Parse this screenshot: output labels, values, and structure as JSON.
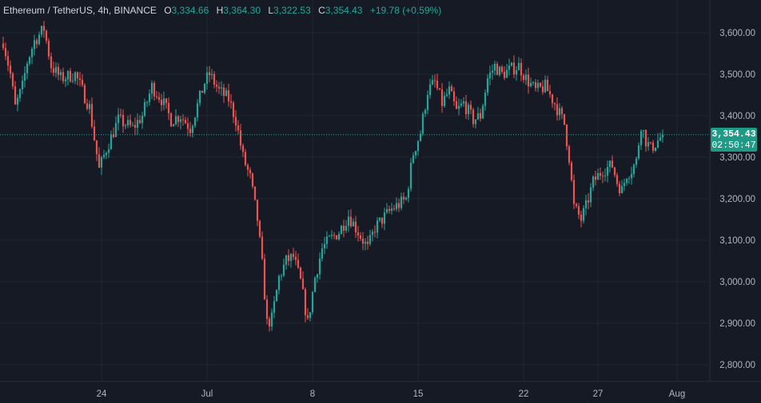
{
  "legend": {
    "symbol": "Ethereum / TetherUS, 4h, BINANCE",
    "open_label": "O",
    "open": "3,334.66",
    "high_label": "H",
    "high": "3,364.30",
    "low_label": "L",
    "low": "3,322.53",
    "close_label": "C",
    "close": "3,354.43",
    "change": "+19.78 (+0.59%)"
  },
  "price_tag": {
    "price": "3,354.43",
    "countdown": "02:50:47"
  },
  "colors": {
    "background": "#161a25",
    "grid": "#232734",
    "up": "#26a69a",
    "down": "#ef5350",
    "text": "#b2b5be",
    "last_price": "#1f9a86"
  },
  "chart_data": {
    "type": "candlestick",
    "title": "Ethereum / TetherUS, 4h, BINANCE",
    "interval": "4h",
    "x_ticks": [
      "24",
      "Jul",
      "8",
      "15",
      "22",
      "27",
      "Aug"
    ],
    "y_ticks": [
      "3,600.00",
      "3,500.00",
      "3,400.00",
      "3,300.00",
      "3,200.00",
      "3,100.00",
      "3,000.00",
      "2,900.00",
      "2,800.00"
    ],
    "y_tick_values": [
      3600,
      3500,
      3400,
      3300,
      3200,
      3100,
      3000,
      2900,
      2800
    ],
    "ylim": [
      2770,
      3635
    ],
    "last_price": 3354.43,
    "grid": true,
    "anchors": [
      [
        0,
        3580
      ],
      [
        3,
        3500
      ],
      [
        5,
        3420
      ],
      [
        8,
        3470
      ],
      [
        10,
        3530
      ],
      [
        13,
        3580
      ],
      [
        17,
        3610
      ],
      [
        20,
        3520
      ],
      [
        24,
        3490
      ],
      [
        30,
        3500
      ],
      [
        36,
        3420
      ],
      [
        40,
        3270
      ],
      [
        43,
        3320
      ],
      [
        48,
        3390
      ],
      [
        54,
        3370
      ],
      [
        58,
        3400
      ],
      [
        62,
        3470
      ],
      [
        66,
        3440
      ],
      [
        70,
        3390
      ],
      [
        74,
        3400
      ],
      [
        78,
        3370
      ],
      [
        84,
        3480
      ],
      [
        86,
        3500
      ],
      [
        90,
        3460
      ],
      [
        94,
        3440
      ],
      [
        97,
        3390
      ],
      [
        100,
        3300
      ],
      [
        103,
        3250
      ],
      [
        106,
        3150
      ],
      [
        108,
        3040
      ],
      [
        110,
        2900
      ],
      [
        112,
        2910
      ],
      [
        115,
        3010
      ],
      [
        118,
        3050
      ],
      [
        121,
        3060
      ],
      [
        124,
        3000
      ],
      [
        127,
        2900
      ],
      [
        130,
        3010
      ],
      [
        133,
        3080
      ],
      [
        136,
        3100
      ],
      [
        140,
        3120
      ],
      [
        144,
        3160
      ],
      [
        148,
        3120
      ],
      [
        152,
        3080
      ],
      [
        155,
        3130
      ],
      [
        158,
        3150
      ],
      [
        162,
        3175
      ],
      [
        166,
        3190
      ],
      [
        168,
        3200
      ],
      [
        171,
        3310
      ],
      [
        174,
        3360
      ],
      [
        177,
        3460
      ],
      [
        180,
        3480
      ],
      [
        183,
        3430
      ],
      [
        186,
        3460
      ],
      [
        189,
        3410
      ],
      [
        192,
        3430
      ],
      [
        196,
        3390
      ],
      [
        199,
        3400
      ],
      [
        202,
        3490
      ],
      [
        205,
        3520
      ],
      [
        208,
        3500
      ],
      [
        211,
        3510
      ],
      [
        215,
        3520
      ],
      [
        218,
        3490
      ],
      [
        222,
        3460
      ],
      [
        226,
        3470
      ],
      [
        230,
        3430
      ],
      [
        234,
        3380
      ],
      [
        236,
        3300
      ],
      [
        238,
        3180
      ],
      [
        241,
        3150
      ],
      [
        243,
        3180
      ],
      [
        246,
        3240
      ],
      [
        250,
        3270
      ],
      [
        254,
        3280
      ],
      [
        256,
        3240
      ],
      [
        258,
        3220
      ],
      [
        260,
        3260
      ],
      [
        262,
        3270
      ],
      [
        264,
        3290
      ],
      [
        266,
        3380
      ],
      [
        268,
        3340
      ],
      [
        270,
        3320
      ],
      [
        273,
        3340
      ],
      [
        275,
        3354.43
      ]
    ],
    "x_tick_index": [
      41,
      85,
      129,
      173,
      217,
      248,
      281
    ],
    "candle_count": 276
  }
}
